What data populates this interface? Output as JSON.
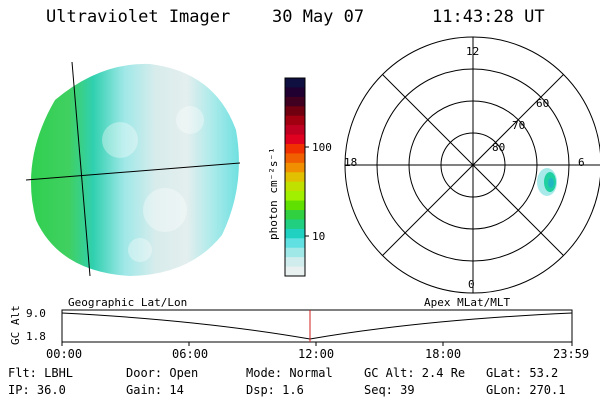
{
  "header": {
    "instrument": "Ultraviolet Imager",
    "date": "30 May 07",
    "time": "11:43:28 UT"
  },
  "colorbar": {
    "label": "photon cm⁻²s⁻¹",
    "ticks": [
      "100",
      "10"
    ],
    "colors": [
      "#101040",
      "#200030",
      "#400020",
      "#700010",
      "#a00010",
      "#c00020",
      "#e00020",
      "#f03000",
      "#f06000",
      "#f09000",
      "#e0c000",
      "#c0e000",
      "#a0f000",
      "#60e000",
      "#30d040",
      "#20d080",
      "#20d0c0",
      "#60e0e0",
      "#a0e8e8",
      "#d0ecec",
      "#e8f0f0"
    ]
  },
  "polar": {
    "mlt_labels": {
      "top": "12",
      "left": "18",
      "right": "6",
      "bottom": "0"
    },
    "lat_labels": [
      "60",
      "70",
      "80"
    ]
  },
  "timeline": {
    "left_title": "Geographic Lat/Lon",
    "right_title": "Apex MLat/MLT",
    "ylabel": "GC Alt",
    "y_ticks": [
      "9.0",
      "1.8"
    ],
    "x_ticks": [
      "00:00",
      "06:00",
      "12:00",
      "18:00",
      "23:59"
    ],
    "marker_color": "#d02020"
  },
  "status": {
    "flt": "Flt: LBHL",
    "door": "Door: Open",
    "mode": "Mode: Normal",
    "gc_alt": "GC Alt: 2.4 Re",
    "glat": "GLat:  53.2",
    "ip": "IP: 36.0",
    "gain": "Gain: 14",
    "dsp": "Dsp:    1.6",
    "seq": "Seq: 39",
    "glon": "GLon: 270.1"
  }
}
